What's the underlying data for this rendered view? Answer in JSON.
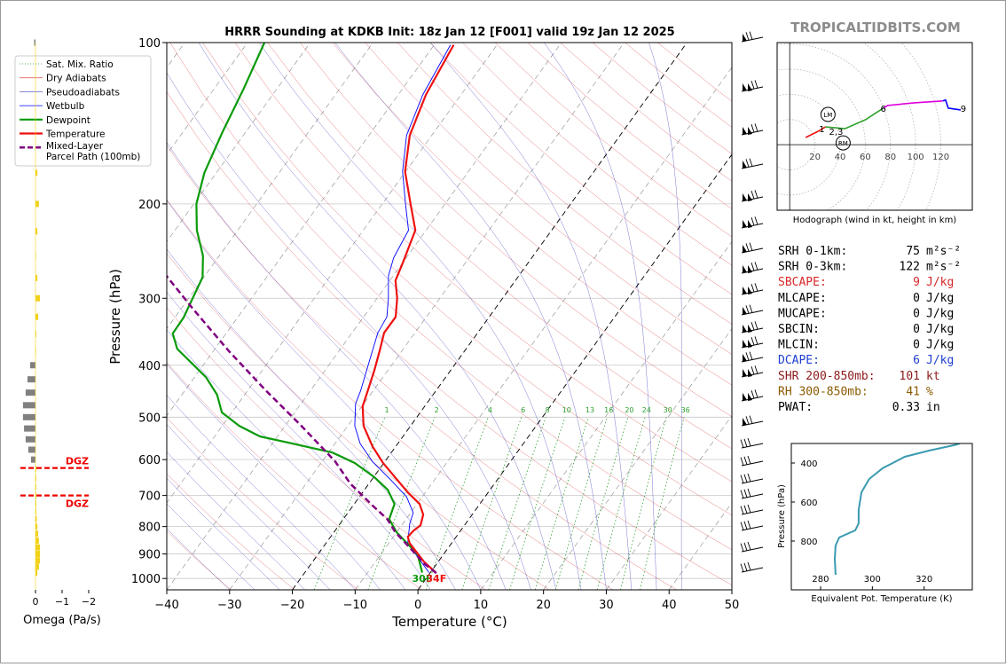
{
  "watermark": "TROPICALTIDBITS.COM",
  "chart_data": [
    {
      "type": "skewt",
      "title": "HRRR Sounding at KDKB Init: 18z Jan 12 [F001] valid 19z Jan 12 2025",
      "xlabel": "Temperature (°C)",
      "ylabel": "Pressure (hPa)",
      "xlim": [
        -40,
        50
      ],
      "ylim": [
        1050,
        100
      ],
      "log_y": true,
      "xticks": [
        {
          "value": -40,
          "label": "−40"
        },
        {
          "value": -30,
          "label": "−30"
        },
        {
          "value": -20,
          "label": "−20"
        },
        {
          "value": -10,
          "label": "−10"
        },
        0,
        10,
        20,
        30,
        40,
        50
      ],
      "yticks": [
        100,
        200,
        300,
        400,
        500,
        600,
        700,
        800,
        900,
        1000
      ],
      "grid": true,
      "highlight_isotherms": [
        -20,
        0
      ],
      "mixing_ratio_labels": [
        1,
        2,
        4,
        6,
        8,
        10,
        13,
        16,
        20,
        24,
        30,
        36
      ],
      "reference_lines": [
        {
          "name": "Sat. Mix. Ratio",
          "color": "#2ca02c",
          "style": "dotted"
        },
        {
          "name": "Dry Adiabats",
          "color": "#d62728",
          "style": "thin"
        },
        {
          "name": "Pseudoadiabats",
          "color": "#1f1fb4",
          "style": "thin"
        }
      ],
      "series": [
        {
          "name": "Wetbulb",
          "color": "#0000ff",
          "style": "thin",
          "pressure": [
            975,
            859,
            790,
            754,
            704,
            653,
            605,
            560,
            519,
            472,
            446,
            398,
            348,
            325,
            300,
            272,
            252,
            224,
            200,
            174,
            149,
            125,
            101
          ],
          "values": [
            -0.2,
            -7.0,
            -8.9,
            -9.6,
            -12.5,
            -17.1,
            -22.0,
            -26.0,
            -28.9,
            -31.3,
            -32.0,
            -33.8,
            -35.9,
            -36.3,
            -38.2,
            -40.8,
            -42.0,
            -42.8,
            -46.3,
            -50.5,
            -54.0,
            -56.1,
            -57.4
          ]
        },
        {
          "name": "Dewpoint",
          "color": "#0a9a0a",
          "style": "thick",
          "surface_label": "30F",
          "pressure": [
            975,
            902,
            820,
            775,
            726,
            683,
            647,
            609,
            582,
            560,
            543,
            519,
            490,
            454,
            421,
            373,
            349,
            326,
            274,
            250,
            224,
            200,
            175,
            147,
            122,
            100
          ],
          "values": [
            -1.3,
            -4.1,
            -10.0,
            -12.7,
            -13.6,
            -16.3,
            -19.9,
            -24.6,
            -29.4,
            -36.8,
            -42.8,
            -47.3,
            -51.6,
            -54.4,
            -58.2,
            -66.0,
            -68.5,
            -68.6,
            -70.2,
            -72.6,
            -76.5,
            -79.6,
            -81.9,
            -83.7,
            -85.3,
            -87.3
          ]
        },
        {
          "name": "Temperature",
          "color": "#ee1111",
          "style": "thick",
          "surface_label": "34F",
          "pressure": [
            977,
            930,
            859,
            836,
            814,
            796,
            760,
            726,
            691,
            647,
            609,
            567,
            519,
            477,
            442,
            410,
            377,
            348,
            325,
            300,
            278,
            257,
            239,
            224,
            200,
            174,
            149,
            125,
            101
          ],
          "values": [
            1.0,
            -2.3,
            -6.7,
            -7.7,
            -7.5,
            -7.0,
            -7.8,
            -9.6,
            -12.8,
            -16.6,
            -20.1,
            -23.7,
            -27.5,
            -29.9,
            -31.0,
            -32.1,
            -33.5,
            -34.9,
            -34.9,
            -36.8,
            -39.1,
            -40.0,
            -40.9,
            -41.7,
            -45.5,
            -50.1,
            -53.5,
            -55.6,
            -56.9
          ]
        },
        {
          "name": "Mixed-Layer\nParcel Path (100mb)",
          "color": "#800080",
          "style": "dashed",
          "pressure": [
            977,
            937,
            875,
            820,
            775,
            731,
            665,
            605,
            519,
            446,
            376,
            314,
            272
          ],
          "values": [
            1.0,
            -2.1,
            -6.2,
            -10.2,
            -13.0,
            -16.9,
            -23.0,
            -27.9,
            -37.4,
            -47.1,
            -57.6,
            -68.1,
            -76.2
          ]
        }
      ]
    },
    {
      "type": "omega",
      "xlabel": "Omega (Pa/s)",
      "xlim": [
        0.6,
        -2.3
      ],
      "ylim": [
        1050,
        100
      ],
      "xticks": [
        0,
        {
          "value": -1,
          "label": "−1"
        },
        {
          "value": -2,
          "label": "−2"
        }
      ],
      "colors": {
        "ascent": "#f2d21a",
        "descent": "#808080"
      },
      "pressure": [
        100,
        175,
        200,
        225,
        250,
        275,
        300,
        325,
        350,
        375,
        400,
        425,
        450,
        475,
        500,
        525,
        550,
        575,
        600,
        625,
        650,
        675,
        700,
        725,
        750,
        775,
        800,
        825,
        850,
        875,
        900,
        925,
        950,
        975
      ],
      "values": [
        0.05,
        -0.07,
        -0.13,
        -0.07,
        -0.02,
        -0.07,
        -0.17,
        -0.1,
        -0.03,
        -0.01,
        0.2,
        0.3,
        0.37,
        0.47,
        0.47,
        0.43,
        0.37,
        0.27,
        0.17,
        -0.03,
        -0.03,
        -0.03,
        -0.03,
        -0.03,
        -0.03,
        -0.05,
        -0.07,
        -0.1,
        -0.13,
        -0.17,
        -0.17,
        -0.17,
        -0.13,
        -0.07
      ],
      "dgz": [
        {
          "pressure": 622,
          "label": "DGZ"
        },
        {
          "pressure": 700,
          "label": "DGZ"
        }
      ]
    },
    {
      "type": "hodograph",
      "caption": "Hodograph (wind in kt, height in km)",
      "xlim": [
        -10,
        145
      ],
      "ylim": [
        -52,
        81
      ],
      "rings": [
        20,
        40,
        60,
        80,
        100,
        120
      ],
      "segments": [
        {
          "color": "#ee1111",
          "u": [
            12.7,
            22.6,
            28.3
          ],
          "v": [
            5.7,
            10.6,
            14.1
          ]
        },
        {
          "color": "#2ca02c",
          "u": [
            28.3,
            43.8,
            60.1,
            74.3
          ],
          "v": [
            14.1,
            12.7,
            19.8,
            29.0
          ]
        },
        {
          "color": "#dd00dd",
          "u": [
            74.3,
            77.8,
            99,
            121.6
          ],
          "v": [
            29.0,
            31.1,
            33.2,
            34.7
          ]
        },
        {
          "color": "#0000ff",
          "u": [
            121.6,
            123.8,
            125.9,
            135.8
          ],
          "v": [
            34.7,
            35.4,
            29.0,
            27.6
          ]
        }
      ],
      "labels": [
        {
          "text": "1",
          "u": 25.5,
          "v": 12.7
        },
        {
          "text": "2,3",
          "u": 36.8,
          "v": 10.6
        },
        {
          "text": "6",
          "u": 74.3,
          "v": 29.0
        },
        {
          "text": "9",
          "u": 137.9,
          "v": 29.0
        }
      ],
      "storm_motion": [
        {
          "label": "LM",
          "u": 30.4,
          "v": 24.0
        },
        {
          "label": "RM",
          "u": 42.4,
          "v": 1.4
        }
      ]
    },
    {
      "type": "line",
      "xlabel": "Equivalent Pot. Temperature (K)",
      "ylabel": "Pressure (hPa)",
      "xlim": [
        268.7,
        338.6
      ],
      "ylim": [
        1050,
        300
      ],
      "xticks": [
        280,
        300,
        320
      ],
      "yticks": [
        400,
        600,
        800
      ],
      "color": "#3a9ab0",
      "x": [
        285.8,
        285.5,
        285.8,
        287.2,
        293.4,
        294.7,
        294.7,
        295.8,
        298.8,
        304.0,
        312.5,
        322.1,
        331.4,
        333.8
      ],
      "y": [
        973,
        891,
        823,
        782,
        745,
        709,
        641,
        550,
        482,
        427,
        368,
        336,
        309,
        300
      ]
    }
  ],
  "stats": [
    {
      "label": "SRH 0-1km:",
      "value": 75,
      "unit": "m²s⁻²",
      "color": "#000000"
    },
    {
      "label": "SRH 0-3km:",
      "value": 122,
      "unit": "m²s⁻²",
      "color": "#000000"
    },
    {
      "label": "SBCAPE:",
      "value": 9,
      "unit": "J/kg",
      "color": "#d62728"
    },
    {
      "label": "MLCAPE:",
      "value": 0,
      "unit": "J/kg",
      "color": "#000000"
    },
    {
      "label": "MUCAPE:",
      "value": 0,
      "unit": "J/kg",
      "color": "#000000"
    },
    {
      "label": "SBCIN:",
      "value": 0,
      "unit": "J/kg",
      "color": "#000000"
    },
    {
      "label": "MLCIN:",
      "value": 0,
      "unit": "J/kg",
      "color": "#000000"
    },
    {
      "label": "DCAPE:",
      "value": 6,
      "unit": "J/kg",
      "color": "#1f3fd0"
    },
    {
      "label": "SHR 200-850mb:",
      "value": 101,
      "unit": "kt",
      "color": "#8b1a1a"
    },
    {
      "label": "RH 300-850mb:",
      "value": 41,
      "unit": "%",
      "color": "#8b5a00"
    },
    {
      "label": "PWAT:",
      "value": 0.33,
      "unit": "in",
      "color": "#000000"
    }
  ]
}
